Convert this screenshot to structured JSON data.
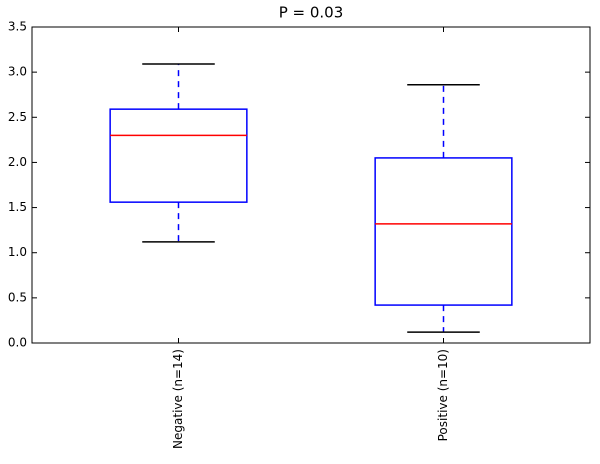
{
  "chart_data": {
    "type": "box",
    "title": "P = 0.03",
    "title_color": "#ff0000",
    "categories": [
      "Negative (n=14)",
      "Positive (n=10)"
    ],
    "boxes": [
      {
        "min": 1.12,
        "q1": 1.56,
        "median": 2.3,
        "q3": 2.59,
        "max": 3.09
      },
      {
        "min": 0.12,
        "q1": 0.42,
        "median": 1.32,
        "q3": 2.05,
        "max": 2.86
      }
    ],
    "box_color": "#0000ff",
    "median_color": "#ff0000",
    "cap_color": "#000000",
    "ylim": [
      0,
      3.5
    ],
    "yticks": [
      {
        "value": 0,
        "label": "0.0"
      },
      0.5,
      {
        "value": 1,
        "label": "1.0"
      },
      1.5,
      {
        "value": 2,
        "label": "2.0"
      },
      2.5,
      {
        "value": 3,
        "label": "3.0"
      },
      3.5
    ],
    "grid": false
  }
}
